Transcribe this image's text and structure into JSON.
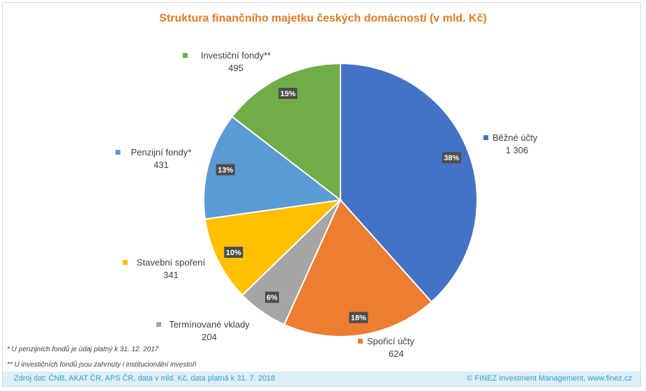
{
  "chart_data": {
    "type": "pie",
    "title": "Struktura finančního majetku českých domácností (v mld. Kč)",
    "unit": "mld. Kč",
    "slices": [
      {
        "name": "Běžné účty",
        "value": 1306,
        "value_label": "1 306",
        "percent_label": "38%",
        "color": "#4472c4"
      },
      {
        "name": "Spořicí účty",
        "value": 624,
        "value_label": "624",
        "percent_label": "18%",
        "color": "#ed7d31"
      },
      {
        "name": "Termínované vklady",
        "value": 204,
        "value_label": "204",
        "percent_label": "6%",
        "color": "#a5a5a5"
      },
      {
        "name": "Stavební spoření",
        "value": 341,
        "value_label": "341",
        "percent_label": "10%",
        "color": "#ffc000"
      },
      {
        "name": "Penzijní fondy*",
        "value": 431,
        "value_label": "431",
        "percent_label": "13%",
        "color": "#5b9bd5"
      },
      {
        "name": "Investiční fondy**",
        "value": 495,
        "value_label": "495",
        "percent_label": "15%",
        "color": "#70ad47"
      }
    ]
  },
  "notes": {
    "penzijni": "* U penzijních fondů je údaj platný k 31. 12. 2017",
    "investicni": "** U investičních fondů jsou zahrnuty i institucionální investoři"
  },
  "footer": {
    "source": "Zdroj dat: ČNB, AKAT ČR, APS ČR, data v mld. Kč, data platná k 31. 7. 2018",
    "copyright": "© FINEZ Investment Management, www.finez.cz"
  }
}
